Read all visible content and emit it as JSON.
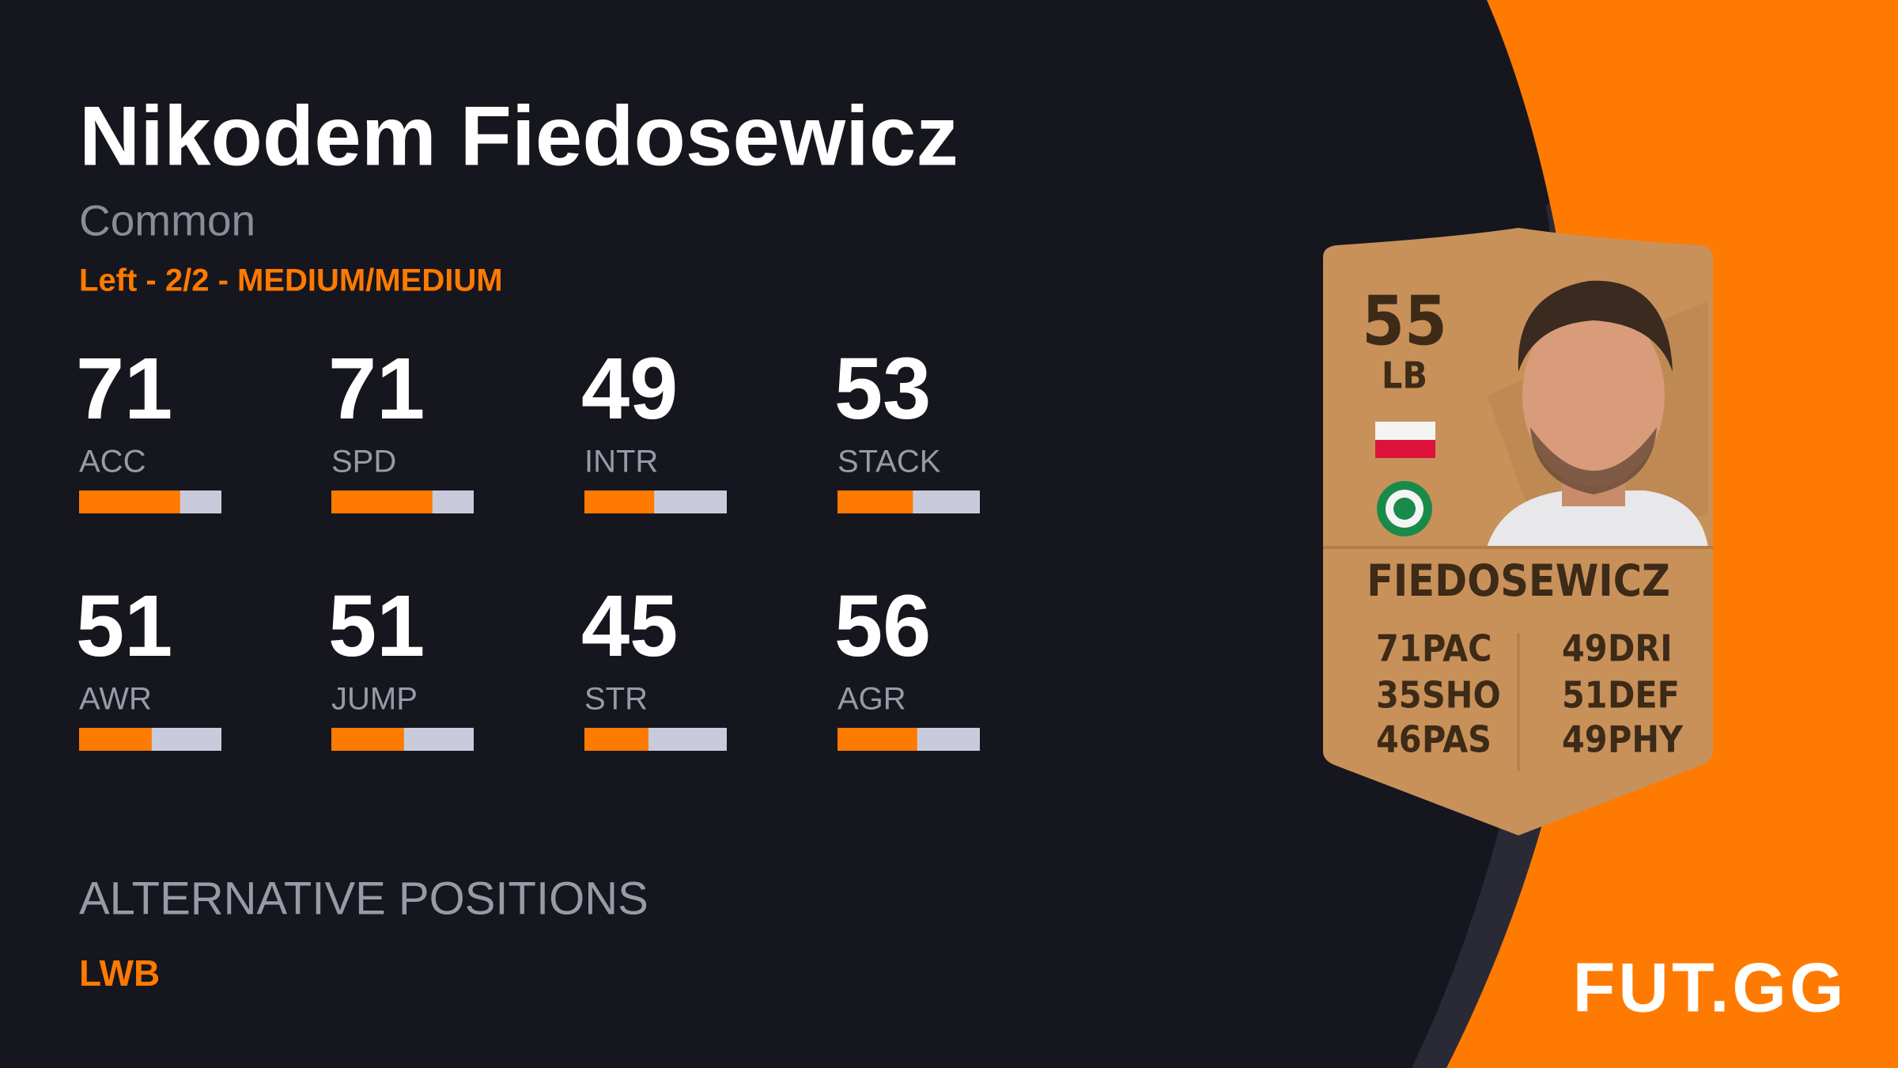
{
  "player": {
    "name": "Nikodem Fiedosewicz",
    "rarity": "Common",
    "info": "Left - 2/2 - MEDIUM/MEDIUM",
    "stats": [
      {
        "value": 71,
        "label": "ACC"
      },
      {
        "value": 71,
        "label": "SPD"
      },
      {
        "value": 49,
        "label": "INTR"
      },
      {
        "value": 53,
        "label": "STACK"
      },
      {
        "value": 51,
        "label": "AWR"
      },
      {
        "value": 51,
        "label": "JUMP"
      },
      {
        "value": 45,
        "label": "STR"
      },
      {
        "value": 56,
        "label": "AGR"
      }
    ]
  },
  "alternative_positions": {
    "title": "ALTERNATIVE POSITIONS",
    "positions": [
      "LWB"
    ]
  },
  "card": {
    "rating": 55,
    "position": "LB",
    "name": "FIEDOSEWICZ",
    "stats": [
      {
        "value": 71,
        "label": "PAC"
      },
      {
        "value": 35,
        "label": "SHO"
      },
      {
        "value": 46,
        "label": "PAS"
      },
      {
        "value": 49,
        "label": "DRI"
      },
      {
        "value": 51,
        "label": "DEF"
      },
      {
        "value": 49,
        "label": "PHY"
      }
    ]
  },
  "logo": "FUT.GG"
}
